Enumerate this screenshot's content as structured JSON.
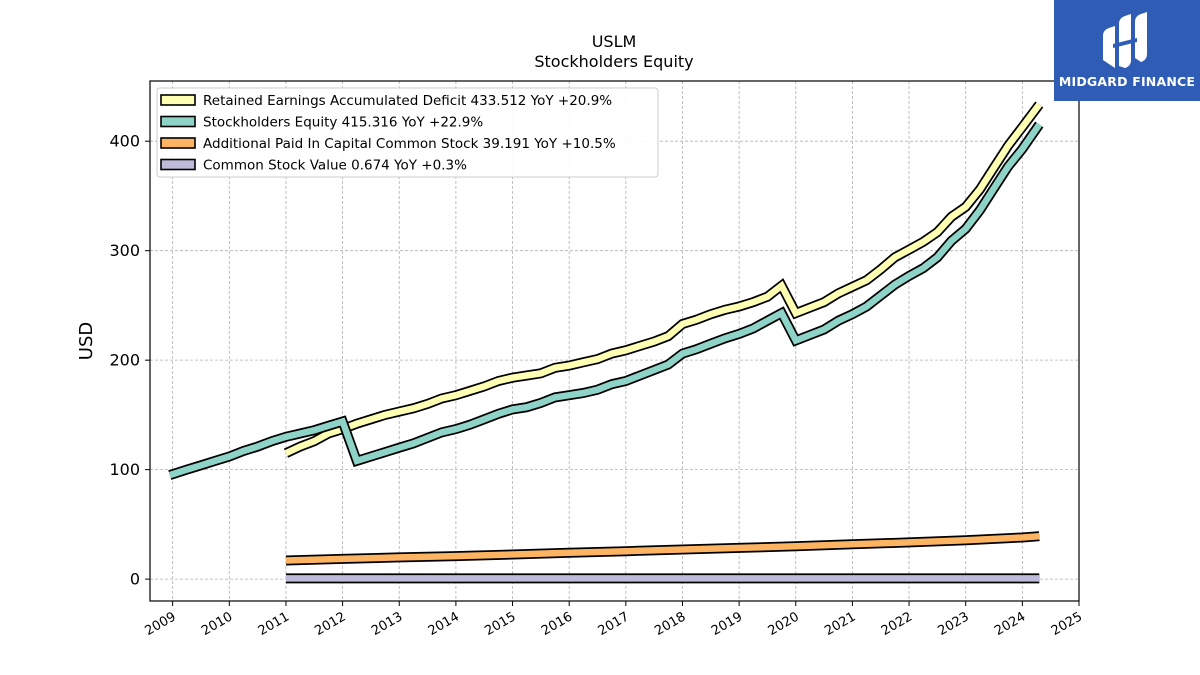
{
  "brand": {
    "name": "MIDGARD FINANCE",
    "color": "#2f5db5"
  },
  "chart_data": {
    "type": "line",
    "title": "USLM",
    "subtitle": "Stockholders  Equity",
    "ylabel": "USD",
    "xlabel": "",
    "xlim": [
      2008.6,
      2025.0
    ],
    "ylim": [
      -20,
      455
    ],
    "yticks": [
      0,
      100,
      200,
      300,
      400
    ],
    "xticks": [
      "2009",
      "2010",
      "2011",
      "2012",
      "2013",
      "2014",
      "2015",
      "2016",
      "2017",
      "2018",
      "2019",
      "2020",
      "2021",
      "2022",
      "2023",
      "2024",
      "2025"
    ],
    "grid": true,
    "legend_position": "top-left",
    "series": [
      {
        "name": "Retained Earnings Accumulated Deficit",
        "legend": "Retained Earnings Accumulated Deficit  433.512 YoY +20.9%",
        "color": "#ffffb3",
        "points": [
          [
            2011.0,
            115
          ],
          [
            2011.25,
            121
          ],
          [
            2011.5,
            126
          ],
          [
            2011.75,
            133
          ],
          [
            2012.0,
            137
          ],
          [
            2012.25,
            142
          ],
          [
            2012.5,
            146
          ],
          [
            2012.75,
            150
          ],
          [
            2013.0,
            153
          ],
          [
            2013.25,
            156
          ],
          [
            2013.5,
            160
          ],
          [
            2013.75,
            165
          ],
          [
            2014.0,
            168
          ],
          [
            2014.25,
            172
          ],
          [
            2014.5,
            176
          ],
          [
            2014.75,
            181
          ],
          [
            2015.0,
            184
          ],
          [
            2015.25,
            186
          ],
          [
            2015.5,
            188
          ],
          [
            2015.75,
            193
          ],
          [
            2016.0,
            195
          ],
          [
            2016.25,
            198
          ],
          [
            2016.5,
            201
          ],
          [
            2016.75,
            206
          ],
          [
            2017.0,
            209
          ],
          [
            2017.25,
            213
          ],
          [
            2017.5,
            217
          ],
          [
            2017.75,
            222
          ],
          [
            2018.0,
            233
          ],
          [
            2018.25,
            237
          ],
          [
            2018.5,
            242
          ],
          [
            2018.75,
            246
          ],
          [
            2019.0,
            249
          ],
          [
            2019.25,
            253
          ],
          [
            2019.5,
            258
          ],
          [
            2019.75,
            268
          ],
          [
            2020.0,
            243
          ],
          [
            2020.25,
            248
          ],
          [
            2020.5,
            253
          ],
          [
            2020.75,
            261
          ],
          [
            2021.0,
            267
          ],
          [
            2021.25,
            273
          ],
          [
            2021.5,
            283
          ],
          [
            2021.75,
            294
          ],
          [
            2022.0,
            301
          ],
          [
            2022.25,
            308
          ],
          [
            2022.5,
            317
          ],
          [
            2022.75,
            331
          ],
          [
            2023.0,
            340
          ],
          [
            2023.25,
            356
          ],
          [
            2023.5,
            376
          ],
          [
            2023.75,
            396
          ],
          [
            2024.0,
            413
          ],
          [
            2024.3,
            433.5
          ]
        ]
      },
      {
        "name": "Stockholders Equity",
        "legend": "Stockholders Equity  415.316 YoY +22.9%",
        "color": "#8dd3c7",
        "points": [
          [
            2008.95,
            95
          ],
          [
            2009.25,
            100
          ],
          [
            2009.5,
            104
          ],
          [
            2009.75,
            108
          ],
          [
            2010.0,
            112
          ],
          [
            2010.25,
            117
          ],
          [
            2010.5,
            121
          ],
          [
            2010.75,
            126
          ],
          [
            2011.0,
            130
          ],
          [
            2011.25,
            133
          ],
          [
            2011.5,
            136
          ],
          [
            2011.75,
            140
          ],
          [
            2012.0,
            144
          ],
          [
            2012.25,
            108
          ],
          [
            2012.5,
            112
          ],
          [
            2012.75,
            116
          ],
          [
            2013.0,
            120
          ],
          [
            2013.25,
            124
          ],
          [
            2013.5,
            129
          ],
          [
            2013.75,
            134
          ],
          [
            2014.0,
            137
          ],
          [
            2014.25,
            141
          ],
          [
            2014.5,
            146
          ],
          [
            2014.75,
            151
          ],
          [
            2015.0,
            155
          ],
          [
            2015.25,
            157
          ],
          [
            2015.5,
            161
          ],
          [
            2015.75,
            166
          ],
          [
            2016.0,
            168
          ],
          [
            2016.25,
            170
          ],
          [
            2016.5,
            173
          ],
          [
            2016.75,
            178
          ],
          [
            2017.0,
            181
          ],
          [
            2017.25,
            186
          ],
          [
            2017.5,
            191
          ],
          [
            2017.75,
            196
          ],
          [
            2018.0,
            206
          ],
          [
            2018.25,
            210
          ],
          [
            2018.5,
            215
          ],
          [
            2018.75,
            220
          ],
          [
            2019.0,
            224
          ],
          [
            2019.25,
            229
          ],
          [
            2019.5,
            236
          ],
          [
            2019.75,
            243
          ],
          [
            2020.0,
            218
          ],
          [
            2020.25,
            223
          ],
          [
            2020.5,
            228
          ],
          [
            2020.75,
            236
          ],
          [
            2021.0,
            242
          ],
          [
            2021.25,
            249
          ],
          [
            2021.5,
            259
          ],
          [
            2021.75,
            269
          ],
          [
            2022.0,
            277
          ],
          [
            2022.25,
            284
          ],
          [
            2022.5,
            294
          ],
          [
            2022.75,
            309
          ],
          [
            2023.0,
            320
          ],
          [
            2023.25,
            337
          ],
          [
            2023.5,
            357
          ],
          [
            2023.75,
            377
          ],
          [
            2024.0,
            393
          ],
          [
            2024.3,
            415.3
          ]
        ]
      },
      {
        "name": "Additional Paid In Capital Common Stock",
        "legend": "Additional Paid In Capital Common Stock  39.191 YoY +10.5%",
        "color": "#fdb462",
        "points": [
          [
            2011.0,
            17
          ],
          [
            2012.0,
            18.5
          ],
          [
            2013.0,
            19.8
          ],
          [
            2014.0,
            21
          ],
          [
            2015.0,
            22.5
          ],
          [
            2016.0,
            24
          ],
          [
            2017.0,
            25.5
          ],
          [
            2018.0,
            27
          ],
          [
            2019.0,
            28.5
          ],
          [
            2020.0,
            30
          ],
          [
            2021.0,
            31.8
          ],
          [
            2022.0,
            33.5
          ],
          [
            2023.0,
            35.5
          ],
          [
            2024.0,
            38
          ],
          [
            2024.3,
            39.2
          ]
        ]
      },
      {
        "name": "Common Stock Value",
        "legend": "Common Stock Value  0.674 YoY +0.3%",
        "color": "#bebada",
        "points": [
          [
            2011.0,
            0.67
          ],
          [
            2024.3,
            0.674
          ]
        ]
      }
    ]
  }
}
